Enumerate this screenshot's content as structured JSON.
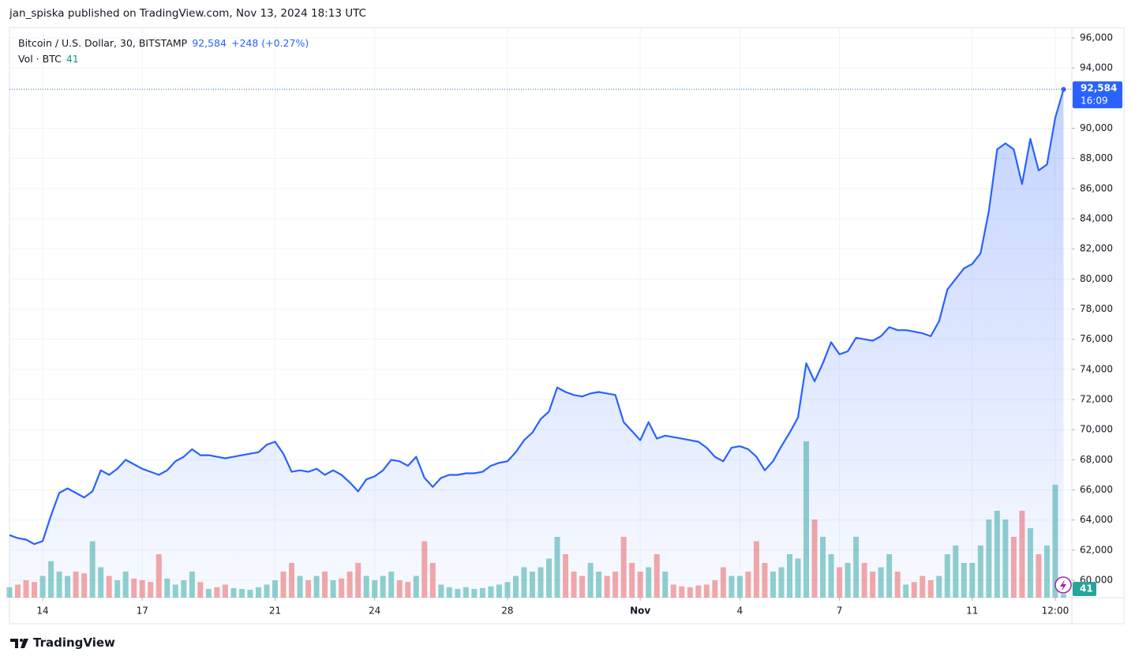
{
  "header": "jan_spiska published on TradingView.com, Nov 13, 2024 18:13 UTC",
  "footer": "TradingView",
  "chart_data": {
    "type": "area",
    "title": "Bitcoin / U.S. Dollar, 30, BITSTAMP",
    "price_label": "92,584",
    "change_label": "+248 (+0.27%)",
    "countdown": "16:09",
    "color": "#2962ff",
    "grid": true,
    "x": [
      "2024-10-13T00:00",
      "2024-10-13T06:00",
      "2024-10-13T12:00",
      "2024-10-13T18:00",
      "2024-10-14T00:00",
      "2024-10-14T06:00",
      "2024-10-14T12:00",
      "2024-10-14T18:00",
      "2024-10-15T00:00",
      "2024-10-15T06:00",
      "2024-10-15T12:00",
      "2024-10-15T18:00",
      "2024-10-16T00:00",
      "2024-10-16T06:00",
      "2024-10-16T12:00",
      "2024-10-16T18:00",
      "2024-10-17T00:00",
      "2024-10-17T06:00",
      "2024-10-17T12:00",
      "2024-10-17T18:00",
      "2024-10-18T00:00",
      "2024-10-18T06:00",
      "2024-10-18T12:00",
      "2024-10-18T18:00",
      "2024-10-19T00:00",
      "2024-10-19T06:00",
      "2024-10-19T12:00",
      "2024-10-19T18:00",
      "2024-10-20T00:00",
      "2024-10-20T06:00",
      "2024-10-20T12:00",
      "2024-10-20T18:00",
      "2024-10-21T00:00",
      "2024-10-21T06:00",
      "2024-10-21T12:00",
      "2024-10-21T18:00",
      "2024-10-22T00:00",
      "2024-10-22T06:00",
      "2024-10-22T12:00",
      "2024-10-22T18:00",
      "2024-10-23T00:00",
      "2024-10-23T06:00",
      "2024-10-23T12:00",
      "2024-10-23T18:00",
      "2024-10-24T00:00",
      "2024-10-24T06:00",
      "2024-10-24T12:00",
      "2024-10-24T18:00",
      "2024-10-25T00:00",
      "2024-10-25T06:00",
      "2024-10-25T12:00",
      "2024-10-25T18:00",
      "2024-10-26T00:00",
      "2024-10-26T06:00",
      "2024-10-26T12:00",
      "2024-10-26T18:00",
      "2024-10-27T00:00",
      "2024-10-27T06:00",
      "2024-10-27T12:00",
      "2024-10-27T18:00",
      "2024-10-28T00:00",
      "2024-10-28T06:00",
      "2024-10-28T12:00",
      "2024-10-28T18:00",
      "2024-10-29T00:00",
      "2024-10-29T06:00",
      "2024-10-29T12:00",
      "2024-10-29T18:00",
      "2024-10-30T00:00",
      "2024-10-30T06:00",
      "2024-10-30T12:00",
      "2024-10-30T18:00",
      "2024-10-31T00:00",
      "2024-10-31T06:00",
      "2024-10-31T12:00",
      "2024-10-31T18:00",
      "2024-11-01T00:00",
      "2024-11-01T06:00",
      "2024-11-01T12:00",
      "2024-11-01T18:00",
      "2024-11-02T00:00",
      "2024-11-02T06:00",
      "2024-11-02T12:00",
      "2024-11-02T18:00",
      "2024-11-03T00:00",
      "2024-11-03T06:00",
      "2024-11-03T12:00",
      "2024-11-03T18:00",
      "2024-11-04T00:00",
      "2024-11-04T06:00",
      "2024-11-04T12:00",
      "2024-11-04T18:00",
      "2024-11-05T00:00",
      "2024-11-05T06:00",
      "2024-11-05T12:00",
      "2024-11-05T18:00",
      "2024-11-06T00:00",
      "2024-11-06T06:00",
      "2024-11-06T12:00",
      "2024-11-06T18:00",
      "2024-11-07T00:00",
      "2024-11-07T06:00",
      "2024-11-07T12:00",
      "2024-11-07T18:00",
      "2024-11-08T00:00",
      "2024-11-08T06:00",
      "2024-11-08T12:00",
      "2024-11-08T18:00",
      "2024-11-09T00:00",
      "2024-11-09T06:00",
      "2024-11-09T12:00",
      "2024-11-09T18:00",
      "2024-11-10T00:00",
      "2024-11-10T06:00",
      "2024-11-10T12:00",
      "2024-11-10T18:00",
      "2024-11-11T00:00",
      "2024-11-11T06:00",
      "2024-11-11T12:00",
      "2024-11-11T18:00",
      "2024-11-12T00:00",
      "2024-11-12T06:00",
      "2024-11-12T12:00",
      "2024-11-12T18:00",
      "2024-11-13T00:00",
      "2024-11-13T06:00",
      "2024-11-13T12:00",
      "2024-11-13T18:00"
    ],
    "values": [
      63000,
      62800,
      62700,
      62400,
      62600,
      64300,
      65800,
      66100,
      65800,
      65500,
      65900,
      67300,
      67000,
      67400,
      68000,
      67700,
      67400,
      67200,
      67000,
      67300,
      67900,
      68200,
      68700,
      68300,
      68300,
      68200,
      68100,
      68200,
      68300,
      68400,
      68500,
      69000,
      69200,
      68400,
      67200,
      67300,
      67200,
      67400,
      67000,
      67300,
      67000,
      66500,
      65900,
      66700,
      66900,
      67300,
      68000,
      67900,
      67600,
      68200,
      66800,
      66200,
      66800,
      67000,
      67000,
      67100,
      67100,
      67200,
      67600,
      67800,
      67900,
      68500,
      69300,
      69800,
      70700,
      71200,
      72800,
      72500,
      72300,
      72200,
      72400,
      72500,
      72400,
      72300,
      70500,
      69900,
      69300,
      70500,
      69400,
      69600,
      69500,
      69400,
      69300,
      69200,
      68800,
      68200,
      67900,
      68800,
      68900,
      68700,
      68200,
      67300,
      67900,
      68900,
      69800,
      70800,
      74400,
      73200,
      74400,
      75800,
      75000,
      75200,
      76100,
      76000,
      75900,
      76200,
      76800,
      76600,
      76600,
      76500,
      76400,
      76200,
      77200,
      79300,
      80000,
      80700,
      81000,
      81700,
      84500,
      88600,
      89000,
      88600,
      86300,
      89300,
      87200,
      87600,
      90700,
      92584
    ],
    "volume": {
      "name": "Vol · BTC",
      "up_color": "#26a69a",
      "down_color": "#ef5350",
      "vlim": [
        0,
        2000
      ],
      "values": [
        120,
        150,
        200,
        180,
        250,
        420,
        300,
        250,
        300,
        280,
        650,
        350,
        250,
        200,
        300,
        220,
        200,
        180,
        500,
        220,
        150,
        200,
        300,
        180,
        100,
        120,
        150,
        110,
        100,
        90,
        120,
        150,
        200,
        300,
        400,
        250,
        200,
        250,
        300,
        200,
        220,
        300,
        400,
        250,
        200,
        250,
        300,
        200,
        180,
        250,
        650,
        400,
        150,
        120,
        100,
        120,
        100,
        110,
        130,
        150,
        180,
        250,
        350,
        300,
        350,
        450,
        700,
        500,
        300,
        250,
        400,
        300,
        250,
        300,
        700,
        400,
        300,
        350,
        500,
        300,
        150,
        130,
        120,
        140,
        150,
        200,
        350,
        250,
        250,
        300,
        650,
        400,
        300,
        350,
        500,
        450,
        1800,
        900,
        700,
        500,
        350,
        400,
        700,
        400,
        300,
        350,
        500,
        300,
        150,
        180,
        250,
        200,
        250,
        500,
        600,
        400,
        400,
        600,
        900,
        1000,
        900,
        700,
        1000,
        800,
        500,
        600,
        1300,
        41
      ]
    },
    "xlim": [
      "2024-10-13T00:00",
      "2024-11-14T00:00"
    ],
    "xticks": [
      {
        "value": "2024-10-14T00:00",
        "label": "14"
      },
      {
        "value": "2024-10-17T00:00",
        "label": "17"
      },
      {
        "value": "2024-10-21T00:00",
        "label": "21"
      },
      {
        "value": "2024-10-24T00:00",
        "label": "24"
      },
      {
        "value": "2024-10-28T00:00",
        "label": "28"
      },
      {
        "value": "2024-11-01T00:00",
        "label": "Nov"
      },
      {
        "value": "2024-11-04T00:00",
        "label": "4"
      },
      {
        "value": "2024-11-07T00:00",
        "label": "7"
      },
      {
        "value": "2024-11-11T00:00",
        "label": "11"
      },
      {
        "value": "2024-11-13T12:00",
        "label": "12:00"
      }
    ],
    "ylim": [
      58850,
      96680
    ],
    "yticks": [
      {
        "value": 60000,
        "label": "60,000"
      },
      {
        "value": 62000,
        "label": "62,000"
      },
      {
        "value": 64000,
        "label": "64,000"
      },
      {
        "value": 66000,
        "label": "66,000"
      },
      {
        "value": 68000,
        "label": "68,000"
      },
      {
        "value": 70000,
        "label": "70,000"
      },
      {
        "value": 72000,
        "label": "72,000"
      },
      {
        "value": 74000,
        "label": "74,000"
      },
      {
        "value": 76000,
        "label": "76,000"
      },
      {
        "value": 78000,
        "label": "78,000"
      },
      {
        "value": 80000,
        "label": "80,000"
      },
      {
        "value": 82000,
        "label": "82,000"
      },
      {
        "value": 84000,
        "label": "84,000"
      },
      {
        "value": 86000,
        "label": "86,000"
      },
      {
        "value": 88000,
        "label": "88,000"
      },
      {
        "value": 90000,
        "label": "90,000"
      },
      {
        "value": 94000,
        "label": "94,000"
      },
      {
        "value": 96000,
        "label": "96,000"
      }
    ]
  }
}
